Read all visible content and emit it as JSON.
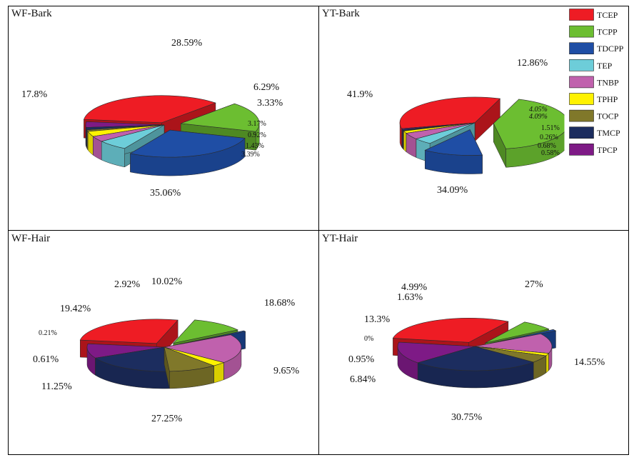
{
  "chart_data": [
    {
      "type": "pie",
      "title": "WF-Bark",
      "categories": [
        "TCEP",
        "TCPP",
        "TDCPP",
        "TEP",
        "TNBP",
        "TPHP",
        "TOCP",
        "TMCP",
        "TPCP"
      ],
      "values": [
        35.06,
        17.8,
        28.59,
        6.29,
        3.33,
        3.17,
        0.92,
        1.43,
        3.39
      ],
      "labels": [
        "35.06%",
        "17.8%",
        "28.59%",
        "6.29%",
        "3.33%",
        "3.17%",
        "0.92%",
        "1.43%",
        "3.39%"
      ],
      "exploded": [
        "TCEP",
        "TCPP",
        "TDCPP"
      ]
    },
    {
      "type": "pie",
      "title": "YT-Bark",
      "categories": [
        "TCEP",
        "TCPP",
        "TDCPP",
        "TEP",
        "TNBP",
        "TPHP",
        "TOCP",
        "TMCP",
        "TPCP"
      ],
      "values": [
        34.09,
        41.9,
        12.86,
        4.05,
        4.09,
        1.51,
        0.26,
        0.68,
        0.58
      ],
      "labels": [
        "34.09%",
        "41.9%",
        "12.86%",
        "4.05%",
        "4.09%",
        "1.51%",
        "0.26%",
        "0.68%",
        "0.58%"
      ],
      "exploded": [
        "TCPP",
        "TDCPP"
      ]
    },
    {
      "type": "pie",
      "title": "WF-Hair",
      "categories": [
        "TCEP",
        "TCPP",
        "TDCPP",
        "TEP",
        "TNBP",
        "TPHP",
        "TOCP",
        "TMCP",
        "TPCP"
      ],
      "values": [
        27.25,
        11.25,
        0.61,
        0.21,
        19.42,
        2.92,
        10.02,
        18.68,
        9.65
      ],
      "labels": [
        "27.25%",
        "11.25%",
        "0.61%",
        "0.21%",
        "19.42%",
        "2.92%",
        "10.02%",
        "18.68%",
        "9.65%"
      ],
      "exploded": [
        "TCEP",
        "TCPP",
        "TDCPP"
      ]
    },
    {
      "type": "pie",
      "title": "YT-Hair",
      "categories": [
        "TCEP",
        "TCPP",
        "TDCPP",
        "TEP",
        "TNBP",
        "TPHP",
        "TOCP",
        "TMCP",
        "TPCP"
      ],
      "values": [
        30.75,
        6.84,
        0.95,
        0,
        13.3,
        1.63,
        4.99,
        27,
        14.55
      ],
      "labels": [
        "30.75%",
        "6.84%",
        "0.95%",
        "0%",
        "13.3%",
        "1.63%",
        "4.99%",
        "27%",
        "14.55%"
      ],
      "exploded": [
        "TCEP",
        "TCPP",
        "TDCPP"
      ]
    }
  ],
  "legend": {
    "entries": [
      {
        "name": "TCEP",
        "color": "#ee1c24"
      },
      {
        "name": "TCPP",
        "color": "#6cbe31"
      },
      {
        "name": "TDCPP",
        "color": "#1f4ea5"
      },
      {
        "name": "TEP",
        "color": "#6dcdd9"
      },
      {
        "name": "TNBP",
        "color": "#c061ad"
      },
      {
        "name": "TPHP",
        "color": "#fff200"
      },
      {
        "name": "TOCP",
        "color": "#80782a"
      },
      {
        "name": "TMCP",
        "color": "#1c2d5f"
      },
      {
        "name": "TPCP",
        "color": "#7e1a86"
      }
    ]
  }
}
